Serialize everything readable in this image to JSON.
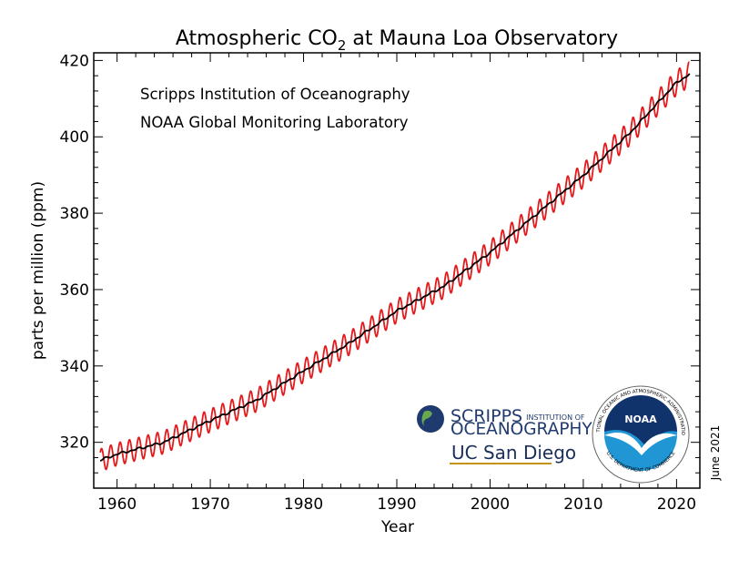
{
  "chart_data": {
    "type": "line",
    "title": "Atmospheric CO",
    "title_sub": "2",
    "title_rest": " at Mauna Loa Observatory",
    "xlabel": "Year",
    "ylabel": "parts per million (ppm)",
    "xlim": [
      1957.5,
      2022.5
    ],
    "ylim": [
      308,
      422
    ],
    "x_ticks": [
      1960,
      1970,
      1980,
      1990,
      2000,
      2010,
      2020
    ],
    "y_ticks": [
      320,
      340,
      360,
      380,
      400,
      420
    ],
    "annotations": [
      "Scripps Institution of Oceanography",
      "NOAA Global Monitoring Laboratory"
    ],
    "date_stamp": "June 2021",
    "grid": false,
    "series": [
      {
        "role": "monthly",
        "color": "#e41a1c",
        "seasonal_amplitude_ppm": 3.2,
        "x": [
          1958.2,
          2021.4
        ]
      },
      {
        "role": "trend",
        "color": "#000000",
        "x": [
          1958.2,
          1960,
          1965,
          1970,
          1975,
          1980,
          1985,
          1990,
          1995,
          2000,
          2005,
          2010,
          2015,
          2020,
          2021.4
        ],
        "y": [
          315.3,
          316.9,
          320.0,
          325.7,
          331.1,
          338.7,
          346.1,
          354.4,
          360.8,
          369.7,
          379.8,
          389.9,
          401.0,
          414.2,
          416.4
        ]
      }
    ]
  },
  "logos": {
    "scripps_line1": "SCRIPPS",
    "scripps_line1_small": "INSTITUTION OF",
    "scripps_line2": "OCEANOGRAPHY",
    "ucsd": "UC San Diego",
    "noaa": "NOAA",
    "noaa_ring_top": "NATIONAL OCEANIC AND ATMOSPHERIC ADMINISTRATION",
    "noaa_ring_bottom": "U.S. DEPARTMENT OF COMMERCE",
    "colors": {
      "scripps_navy": "#1f3a6e",
      "ucsd_blue": "#1a2f5a",
      "ucsd_gold": "#c69214",
      "noaa_dark": "#10336b",
      "noaa_light": "#2196d4"
    }
  }
}
